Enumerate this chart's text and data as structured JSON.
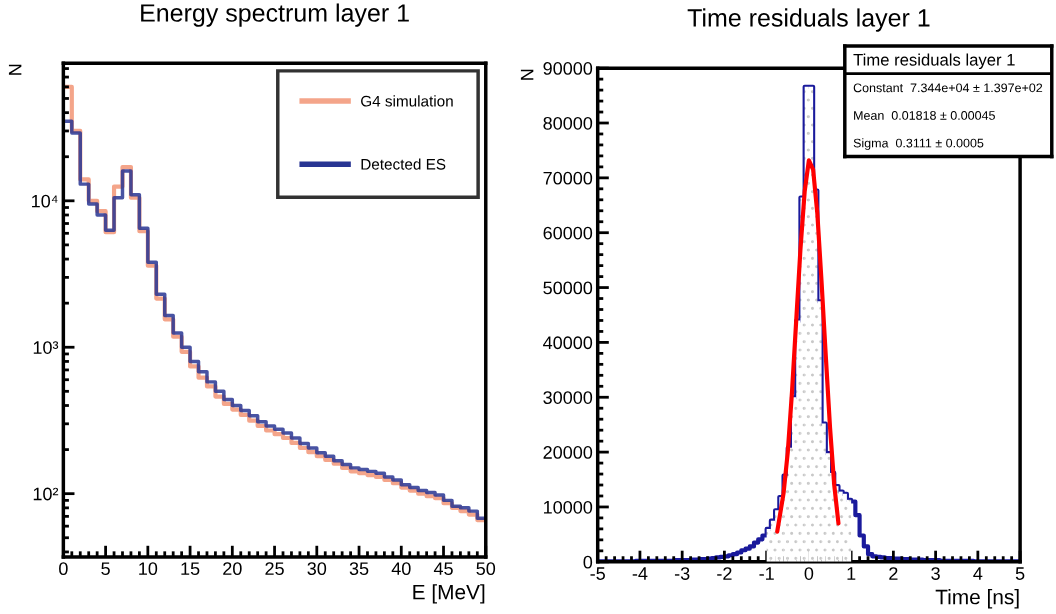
{
  "chart_data": [
    {
      "type": "histogram",
      "title": "Energy spectrum layer 1",
      "xlabel": "E [MeV]",
      "ylabel": "N",
      "log": "y",
      "legend": "top right",
      "xlim": [
        0,
        50
      ],
      "xticks": [
        0,
        5,
        10,
        15,
        20,
        25,
        30,
        35,
        40,
        45,
        50
      ],
      "ylim": [
        37,
        87000
      ],
      "yticks": [
        {
          "value": 100,
          "label": "10²"
        },
        {
          "value": 1000,
          "label": "10³"
        },
        {
          "value": 10000,
          "label": "10⁴"
        }
      ],
      "bins": [
        0,
        1,
        2,
        3,
        4,
        5,
        6,
        7,
        8,
        9,
        10,
        11,
        12,
        13,
        14,
        15,
        16,
        17,
        18,
        19,
        20,
        21,
        22,
        23,
        24,
        25,
        26,
        27,
        28,
        29,
        30,
        31,
        32,
        33,
        34,
        35,
        36,
        37,
        38,
        39,
        40,
        41,
        42,
        43,
        44,
        45,
        46,
        47,
        48,
        49,
        50
      ],
      "series": [
        {
          "name": "G4 simulation",
          "color": "#f4a58a",
          "values": [
            60000,
            30000,
            14000,
            10000,
            8500,
            6100,
            12500,
            17000,
            10500,
            6200,
            3600,
            2150,
            1550,
            1180,
            930,
            740,
            620,
            540,
            460,
            410,
            375,
            345,
            315,
            290,
            270,
            255,
            240,
            222,
            205,
            192,
            180,
            170,
            160,
            150,
            142,
            138,
            134,
            130,
            124,
            118,
            110,
            105,
            100,
            96,
            93,
            86,
            80,
            76,
            72,
            66
          ]
        },
        {
          "name": "Detected ES",
          "color": "#283593",
          "values": [
            35000,
            29000,
            13000,
            9500,
            8000,
            6300,
            10500,
            16000,
            11000,
            6500,
            3800,
            2300,
            1650,
            1250,
            1000,
            800,
            680,
            580,
            500,
            440,
            400,
            370,
            340,
            310,
            290,
            275,
            260,
            240,
            220,
            205,
            190,
            180,
            168,
            158,
            150,
            146,
            142,
            138,
            130,
            124,
            115,
            110,
            105,
            102,
            98,
            90,
            82,
            80,
            76,
            68
          ]
        }
      ]
    },
    {
      "type": "histogram",
      "title": "Time residuals layer 1",
      "xlabel": "Time [ns]",
      "ylabel": "N",
      "xlim": [
        -5,
        5
      ],
      "xticks": [
        -5,
        -4,
        -3,
        -2,
        -1,
        0,
        1,
        2,
        3,
        4,
        5
      ],
      "ylim": [
        0,
        90000
      ],
      "yticks": [
        0,
        10000,
        20000,
        30000,
        40000,
        50000,
        60000,
        70000,
        80000,
        90000
      ],
      "bins": [
        -5.0,
        -4.9,
        -4.8,
        -4.7,
        -4.6,
        -4.5,
        -4.4,
        -4.3,
        -4.2,
        -4.1,
        -4.0,
        -3.9,
        -3.8,
        -3.7,
        -3.6,
        -3.5,
        -3.4,
        -3.3,
        -3.2,
        -3.1,
        -3.0,
        -2.9,
        -2.8,
        -2.7,
        -2.6,
        -2.5,
        -2.4,
        -2.3,
        -2.2,
        -2.1,
        -2.0,
        -1.9,
        -1.8,
        -1.7,
        -1.6,
        -1.5,
        -1.4,
        -1.3,
        -1.2,
        -1.1,
        -1.0,
        -0.9,
        -0.8,
        -0.7,
        -0.6,
        -0.5,
        -0.4,
        -0.3,
        -0.2,
        -0.1,
        0.0,
        0.1,
        0.2,
        0.3,
        0.4,
        0.5,
        0.6,
        0.7,
        0.8,
        0.9,
        1.0,
        1.1,
        1.2,
        1.3,
        1.4,
        1.5,
        1.6,
        1.7,
        1.8,
        1.9,
        2.0,
        2.1,
        2.2,
        2.3,
        2.4,
        2.5,
        2.6,
        2.7,
        2.8,
        2.9,
        3.0,
        3.1,
        3.2,
        3.3,
        3.4,
        3.5,
        3.6,
        3.7,
        3.8,
        3.9,
        4.0,
        4.1,
        4.2,
        4.3,
        4.4,
        4.5,
        4.6,
        4.7,
        4.8,
        4.9,
        5.0
      ],
      "series": [
        {
          "type": "bar",
          "color": "#c8c8c8",
          "x": [
            -0.95,
            -0.85,
            -0.75,
            -0.65,
            -0.55,
            -0.45,
            -0.35,
            -0.25,
            -0.15,
            -0.05,
            0.05,
            0.15,
            0.25,
            0.35,
            0.45,
            0.55,
            0.65,
            0.75,
            0.85,
            0.95
          ],
          "values": [
            6000,
            7500,
            9400,
            11800,
            15700,
            20800,
            30000,
            44000,
            66400,
            86600,
            86600,
            67700,
            47500,
            25200,
            19800,
            16200,
            13800,
            12800,
            12400,
            11300
          ]
        },
        {
          "type": "histogram",
          "color": "#1a1a9c",
          "values": [
            100,
            100,
            100,
            100,
            100,
            100,
            100,
            100,
            100,
            200,
            200,
            200,
            200,
            200,
            200,
            200,
            200,
            200,
            300,
            300,
            300,
            300,
            400,
            400,
            500,
            500,
            600,
            700,
            800,
            900,
            1000,
            1200,
            1400,
            1700,
            2100,
            2400,
            2800,
            3500,
            4100,
            4800,
            6000,
            7500,
            9400,
            11800,
            15700,
            20800,
            30000,
            44000,
            66400,
            86600,
            86600,
            67700,
            47500,
            25200,
            19800,
            16200,
            13800,
            12800,
            12400,
            11300,
            11000,
            8500,
            4800,
            2800,
            1400,
            1000,
            900,
            800,
            700,
            700,
            600,
            600,
            500,
            500,
            400,
            400,
            400,
            300,
            300,
            300,
            300,
            200,
            200,
            200,
            200,
            200,
            200,
            200,
            200,
            100,
            100,
            100,
            100,
            100,
            100,
            100,
            100,
            100,
            100,
            100
          ]
        },
        {
          "type": "line",
          "color": "#ff0000",
          "x": [
            -0.75,
            -0.6,
            -0.5,
            -0.4,
            -0.3,
            -0.2,
            -0.1,
            0,
            0.1,
            0.2,
            0.3,
            0.4,
            0.5,
            0.6,
            0.7
          ],
          "values": [
            5500,
            12500,
            20000,
            31000,
            44000,
            57000,
            67500,
            73200,
            71500,
            63500,
            51000,
            37500,
            24500,
            14000,
            7000
          ]
        }
      ],
      "annotations": [
        "Time residuals layer 1",
        "Constant  7.344e+04 ± 1.397e+02",
        "Mean  0.01818 ± 0.00045",
        "Sigma  0.3111 ± 0.0005"
      ]
    }
  ]
}
